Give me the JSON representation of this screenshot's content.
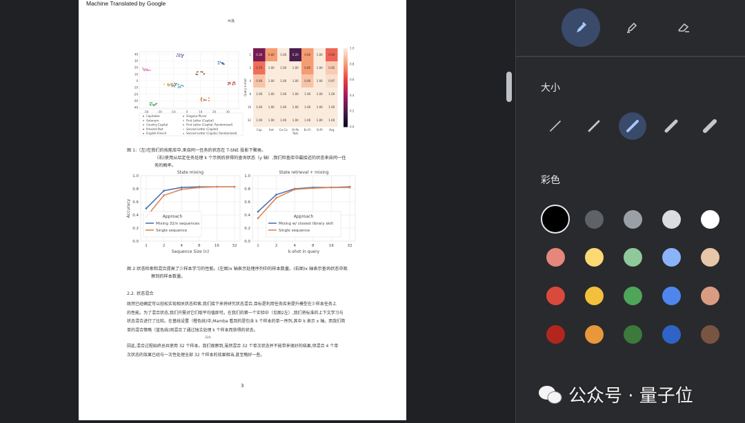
{
  "document": {
    "banner": "Machine Translated by Google",
    "running_header": "州洛",
    "fig1_caption_line1": "图 1:（左)在我们的技能库中,来自同一任务的状态在 T-SNE 投影下聚类。",
    "fig1_caption_line2": "（右)使用从给定任务处理 k 个示例后获得的查询状态（y 轴）,我们检查库中最接近的状态来自同一任",
    "fig1_caption_line3": "务的概率。",
    "fig2_caption_line1": "图 2:状态检索和混合提高了少样本学习的性能。(左图)x 轴表示处理序列中的样本数量。(右图)x 轴表示查询状态中观",
    "fig2_caption_line2": "察到的样本数量。",
    "section_heading": "2.2. 状态混合",
    "para1": [
      "既然已经确定可以轻松实现相关状态检索,我们接下来将研究状态混合,目标是利用任务库来提升模型在少样本任务上",
      "的性能。为了混合状态,我们只需对它们取平均值即可。在我们的第一个实验中（见图2左）,我们将标准的上下文学习与",
      "状态混合进行了比较。在基线设置（橙色线)中,Mamba 看到的是包含 k 个样本的单一序列,其中 k 表示 x 轴。而我们简",
      "单的混合策略（蓝色线)则混合了通过独立处理 k 个样本而获得的状态。"
    ],
    "fraction": "32/k",
    "para2": [
      "因此,混合过程始终总共使用 32 个样本。我们观察到,虽然混合 32 个单次状态并不能带来很好的结果,但混合 4 个单",
      "次状态的效果已经与一次性处理全部 32 个样本的效果相当,甚至略好一些。"
    ],
    "page_number": "3"
  },
  "chart_data": [
    {
      "type": "scatter",
      "title": "",
      "xlim": [
        -35,
        38
      ],
      "ylim": [
        -42,
        44
      ],
      "xticks": [
        -30,
        -20,
        -10,
        0,
        10,
        20,
        30
      ],
      "yticks": [
        -40,
        -30,
        -20,
        -10,
        0,
        10,
        20,
        30,
        40
      ],
      "legend_placement": "bottom",
      "series": [
        {
          "name": "Capitalize",
          "color": "#4c72b0",
          "center": [
            26,
            27
          ]
        },
        {
          "name": "Antonym",
          "color": "#dd8452",
          "center": [
            13,
            -28
          ]
        },
        {
          "name": "Country-Capital",
          "color": "#55a868",
          "center": [
            -24,
            -35
          ]
        },
        {
          "name": "Present-Past",
          "color": "#c44e52",
          "center": [
            32,
            -4
          ]
        },
        {
          "name": "English-French",
          "color": "#8172b3",
          "center": [
            -4,
            38
          ]
        },
        {
          "name": "Singular-Plural",
          "color": "#937860",
          "center": [
            10,
            12
          ]
        },
        {
          "name": "First Letter (Capital)",
          "color": "#da8bc3",
          "center": [
            -29,
            18
          ]
        },
        {
          "name": "First Letter (Capital, Randomized)",
          "color": "#8c8c8c",
          "center": [
            -8,
            -6
          ]
        },
        {
          "name": "Second Letter (Capital)",
          "color": "#ccb974",
          "center": [
            -14,
            -7
          ]
        },
        {
          "name": "Second Letter (Capital, Randomized)",
          "color": "#64b5cd",
          "center": [
            -6,
            -8
          ]
        }
      ]
    },
    {
      "type": "heatmap",
      "xlabel": "Task",
      "ylabel": "Query k-shot",
      "columns": [
        "Cap",
        "Ant",
        "Co-Ca",
        "Pr-Pa",
        "En-Fr",
        "Si-Pl",
        "Avg"
      ],
      "rows": [
        "1",
        "2",
        "4",
        "8",
        "16",
        "32"
      ],
      "values": [
        [
          0.3,
          0.8,
          1.0,
          0.2,
          0.8,
          1.0,
          0.68
        ],
        [
          0.7,
          1.0,
          1.0,
          1.0,
          0.8,
          1.0,
          0.92
        ],
        [
          0.9,
          1.0,
          1.0,
          1.0,
          0.9,
          1.0,
          0.97
        ],
        [
          1.0,
          1.0,
          1.0,
          1.0,
          1.0,
          1.0,
          1.0
        ],
        [
          1.0,
          1.0,
          1.0,
          1.0,
          1.0,
          1.0,
          1.0
        ],
        [
          1.0,
          1.0,
          1.0,
          1.0,
          1.0,
          1.0,
          1.0
        ]
      ],
      "colorbar_ticks": [
        "0.0",
        "0.2",
        "0.4",
        "0.6",
        "0.8",
        "1.0"
      ],
      "vmin": 0,
      "vmax": 1
    },
    {
      "type": "line",
      "title": "State mixing",
      "xlabel": "Sequence Size (n)",
      "ylabel": "Accuracy",
      "ylim": [
        0,
        1
      ],
      "categories": [
        "1",
        "2",
        "4",
        "8",
        "16",
        "32"
      ],
      "yticks": [
        "0.0",
        "0.2",
        "0.4",
        "0.6",
        "0.8",
        "1.0"
      ],
      "legend_title": "Approach",
      "legend_placement": "bottom-left",
      "grid": true,
      "series": [
        {
          "name": "Mixing 32/n sequences",
          "color": "#4c72b0",
          "values": [
            0.5,
            0.77,
            0.82,
            0.83,
            0.83,
            0.83
          ]
        },
        {
          "name": "Single sequence",
          "color": "#dd8452",
          "values": [
            0.37,
            0.7,
            0.79,
            0.82,
            0.83,
            0.83
          ]
        }
      ]
    },
    {
      "type": "line",
      "title": "State retrieval + mixing",
      "xlabel": "k-shot in query",
      "ylabel": "",
      "ylim": [
        0,
        1
      ],
      "categories": [
        "1",
        "2",
        "4",
        "8",
        "16",
        "32"
      ],
      "yticks": [
        "0.0",
        "0.2",
        "0.4",
        "0.6",
        "0.8",
        "1.0"
      ],
      "legend_title": "Approach",
      "legend_placement": "bottom-center",
      "grid": true,
      "series": [
        {
          "name": "Mixing w/ closest library skill",
          "color": "#4c72b0",
          "values": [
            0.45,
            0.71,
            0.8,
            0.82,
            0.82,
            0.83
          ]
        },
        {
          "name": "Single sequence",
          "color": "#dd8452",
          "values": [
            0.35,
            0.66,
            0.79,
            0.81,
            0.82,
            0.82
          ]
        }
      ]
    }
  ],
  "panel": {
    "tools": [
      {
        "icon": "pen-icon",
        "selected": true
      },
      {
        "icon": "highlighter-icon",
        "selected": false
      },
      {
        "icon": "eraser-icon",
        "selected": false
      }
    ],
    "size_label": "大小",
    "sizes": [
      1,
      2,
      3,
      4,
      5
    ],
    "selected_size": 3,
    "color_label": "彩色",
    "colors": [
      [
        "#000000",
        "#5f6368",
        "#9aa0a6",
        "#dadce0",
        "#ffffff"
      ],
      [
        "#e6877b",
        "#fcd874",
        "#8fc89a",
        "#8ab4f8",
        "#e8c6a8"
      ],
      [
        "#d94a3d",
        "#f2c03c",
        "#4fa55a",
        "#4e86ee",
        "#d99c83"
      ],
      [
        "#b3261e",
        "#e8983a",
        "#3b7a3c",
        "#2f64c6",
        "#7a5443"
      ]
    ],
    "selected_color": "#000000"
  },
  "watermark": {
    "text": "公众号 · 量子位"
  }
}
